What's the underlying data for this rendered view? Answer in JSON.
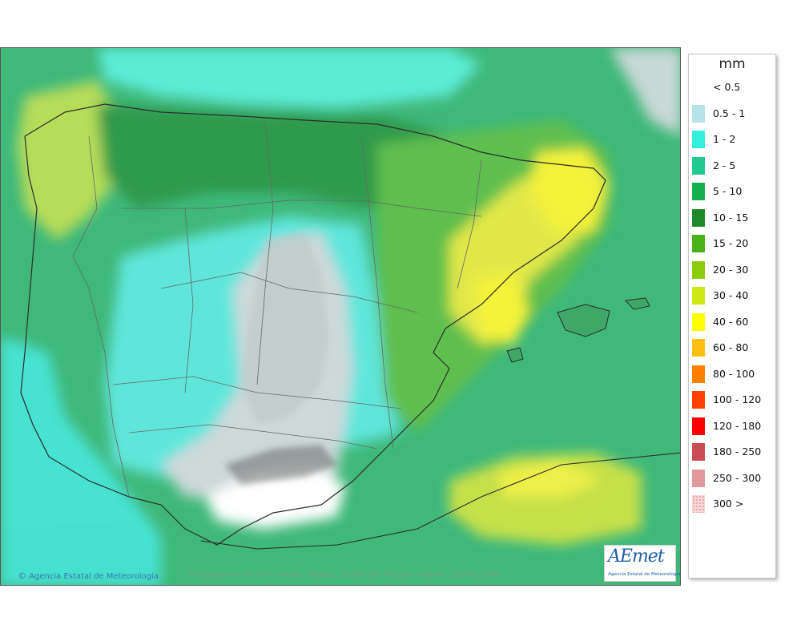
{
  "map": {
    "caption": "Precipitación en 24 h media. Validez: 20260120 Pasada modelo: 2026011800",
    "copyright_symbol": "©",
    "copyright_text": "Agencia Estatal de Meteorología",
    "logo_word": "AEmet",
    "logo_subtitle": "Agencia Estatal de Meteorología"
  },
  "legend": {
    "title": "mm",
    "classes": [
      {
        "label": "< 0.5",
        "color": "#ffffff"
      },
      {
        "label": "0.5 - 1",
        "color": "#b7e2e6"
      },
      {
        "label": "1 - 2",
        "color": "#33f0dd"
      },
      {
        "label": "2 - 5",
        "color": "#22c990"
      },
      {
        "label": "5 - 10",
        "color": "#16b04e"
      },
      {
        "label": "10 - 15",
        "color": "#1f8a2a"
      },
      {
        "label": "15 - 20",
        "color": "#4ab319"
      },
      {
        "label": "20 - 30",
        "color": "#8dcc0c"
      },
      {
        "label": "30 - 40",
        "color": "#cde812"
      },
      {
        "label": "40 - 60",
        "color": "#ffff00"
      },
      {
        "label": "60 - 80",
        "color": "#ffbf12"
      },
      {
        "label": "80 - 100",
        "color": "#ff7f00"
      },
      {
        "label": "100 - 120",
        "color": "#ff4000"
      },
      {
        "label": "120 - 180",
        "color": "#ff0000"
      },
      {
        "label": "180 - 250",
        "color": "#cc4c55"
      },
      {
        "label": "250 - 300",
        "color": "#e0999c"
      },
      {
        "label": "300 >",
        "color": "#f6d6d6"
      }
    ]
  }
}
